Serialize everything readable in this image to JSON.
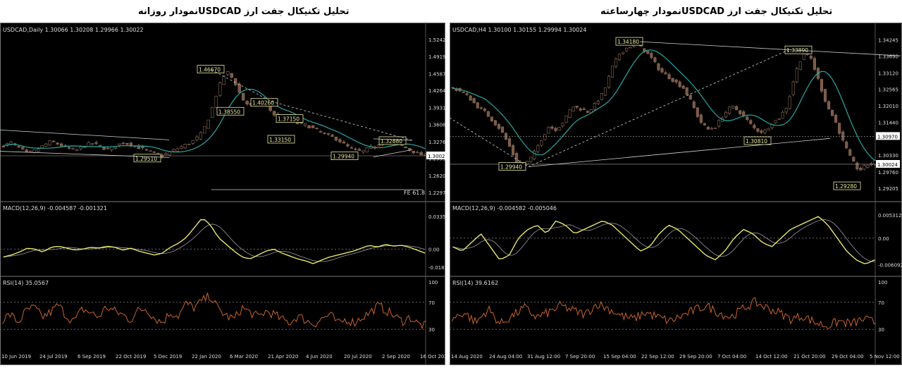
{
  "titles": {
    "left": "تحلیل تکنیکال جفت ارز USDCADنمودار روزانه",
    "right": "تحلیل تکنیکال جفت ارز USDCADنمودار چهارساعته"
  },
  "colors": {
    "background": "#000000",
    "candle_up": "#7a5a48",
    "candle_down": "#8a6a55",
    "moving_average": "#2aa7a2",
    "macd_line": "#e8e46a",
    "macd_signal": "#9a9a9a",
    "rsi_line": "#c8642a",
    "label_box": "#e8e8a0",
    "trendline": "#d0d0d0"
  },
  "chart_data": [
    {
      "type": "candlestick",
      "header": "USDCAD,Daily  1.30066 1.30208 1.29966 1.30022",
      "y_ticks": [
        "1.52425",
        "1.49195",
        "1.45870",
        "1.42640",
        "1.39315",
        "1.36085",
        "1.32760",
        "1.29530",
        "1.26205",
        "1.22975"
      ],
      "ylim": [
        1.22,
        1.53
      ],
      "x_ticks": [
        "10 Jun 2019",
        "24 Jul 2019",
        "6 Sep 2019",
        "22 Oct 2019",
        "5 Dec 2019",
        "22 Jan 2020",
        "6 Mar 2020",
        "21 Apr 2020",
        "4 Jun 2020",
        "20 Jul 2020",
        "2 Sep 2020",
        "16 Oct 2020"
      ],
      "annotations": [
        "1.46670",
        "1.38550",
        "1.40260",
        "1.37150",
        "1.33150",
        "1.29510",
        "1.29940",
        "1.32880"
      ],
      "last_price": "1.30022",
      "fe_label": "FE 61.8",
      "close_path": [
        1.32,
        1.325,
        1.315,
        1.305,
        1.31,
        1.32,
        1.328,
        1.322,
        1.315,
        1.31,
        1.318,
        1.325,
        1.32,
        1.312,
        1.318,
        1.326,
        1.322,
        1.316,
        1.31,
        1.305,
        1.3,
        1.308,
        1.315,
        1.322,
        1.33,
        1.345,
        1.38,
        1.43,
        1.465,
        1.445,
        1.41,
        1.395,
        1.405,
        1.398,
        1.38,
        1.37,
        1.372,
        1.362,
        1.36,
        1.352,
        1.345,
        1.338,
        1.332,
        1.32,
        1.312,
        1.308,
        1.315,
        1.322,
        1.33,
        1.328,
        1.32,
        1.312,
        1.305,
        1.3
      ],
      "macd": {
        "header": "MACD(12,26,9) -0.004587 -0.001321",
        "y_ticks": [
          "0.033515",
          "0.00",
          "-0.018324"
        ],
        "ylim": [
          -0.022,
          0.037
        ],
        "values": [
          -0.008,
          -0.006,
          -0.003,
          0.001,
          0.0,
          -0.003,
          0.002,
          0.003,
          0.001,
          -0.001,
          0.0,
          0.002,
          0.001,
          0.003,
          0.002,
          -0.001,
          0.001,
          -0.002,
          -0.004,
          -0.006,
          -0.004,
          0.002,
          0.006,
          0.012,
          0.022,
          0.032,
          0.025,
          0.012,
          0.005,
          -0.002,
          -0.008,
          -0.01,
          -0.006,
          -0.002,
          0.0,
          -0.004,
          -0.007,
          -0.01,
          -0.012,
          -0.015,
          -0.011,
          -0.008,
          -0.006,
          -0.004,
          -0.002,
          0.001,
          0.004,
          0.002,
          0.005,
          0.003,
          0.004,
          0.002,
          -0.001,
          -0.004
        ]
      },
      "rsi": {
        "header": "RSI(14) 35.0567",
        "y_ticks": [
          "100",
          "70",
          "30",
          "0"
        ],
        "ylim": [
          0,
          100
        ],
        "values": [
          45,
          52,
          40,
          58,
          62,
          48,
          55,
          66,
          50,
          42,
          60,
          55,
          48,
          63,
          57,
          52,
          44,
          58,
          61,
          47,
          40,
          55,
          50,
          68,
          62,
          72,
          80,
          60,
          50,
          45,
          62,
          55,
          48,
          57,
          52,
          44,
          40,
          50,
          43,
          38,
          46,
          52,
          38,
          45,
          40,
          48,
          55,
          65,
          58,
          50,
          42,
          48,
          38,
          35
        ]
      }
    },
    {
      "type": "candlestick",
      "header": "USDCAD,H4  1.30100 1.30155 1.29994 1.30024",
      "y_ticks": [
        "1.34245",
        "1.33690",
        "1.33120",
        "1.32565",
        "1.32010",
        "1.31440",
        "1.30970",
        "1.30330",
        "1.30024",
        "1.29760",
        "1.29205"
      ],
      "ylim": [
        1.289,
        1.3435
      ],
      "x_ticks": [
        "14 Aug 2020",
        "24 Aug 04:00",
        "31 Aug 12:00",
        "7 Sep 20:00",
        "15 Sep 04:00",
        "22 Sep 12:00",
        "29 Sep 20:00",
        "7 Oct 04:00",
        "14 Oct 12:00",
        "21 Oct 20:00",
        "29 Oct 04:00",
        "5 Nov 12:00"
      ],
      "annotations": [
        "1.34180",
        "1.33890",
        "1.30810",
        "1.29940",
        "1.29280"
      ],
      "level_1": "1.30970",
      "last_price": "1.30024",
      "close_path": [
        1.326,
        1.325,
        1.323,
        1.32,
        1.318,
        1.315,
        1.312,
        1.307,
        1.301,
        1.3,
        1.303,
        1.308,
        1.313,
        1.312,
        1.315,
        1.32,
        1.319,
        1.318,
        1.321,
        1.325,
        1.333,
        1.338,
        1.34,
        1.341,
        1.339,
        1.336,
        1.332,
        1.33,
        1.328,
        1.326,
        1.321,
        1.315,
        1.312,
        1.313,
        1.317,
        1.32,
        1.318,
        1.315,
        1.312,
        1.311,
        1.314,
        1.316,
        1.32,
        1.331,
        1.338,
        1.336,
        1.328,
        1.32,
        1.315,
        1.308,
        1.302,
        1.298,
        1.3,
        1.301
      ]
    }
  ]
}
